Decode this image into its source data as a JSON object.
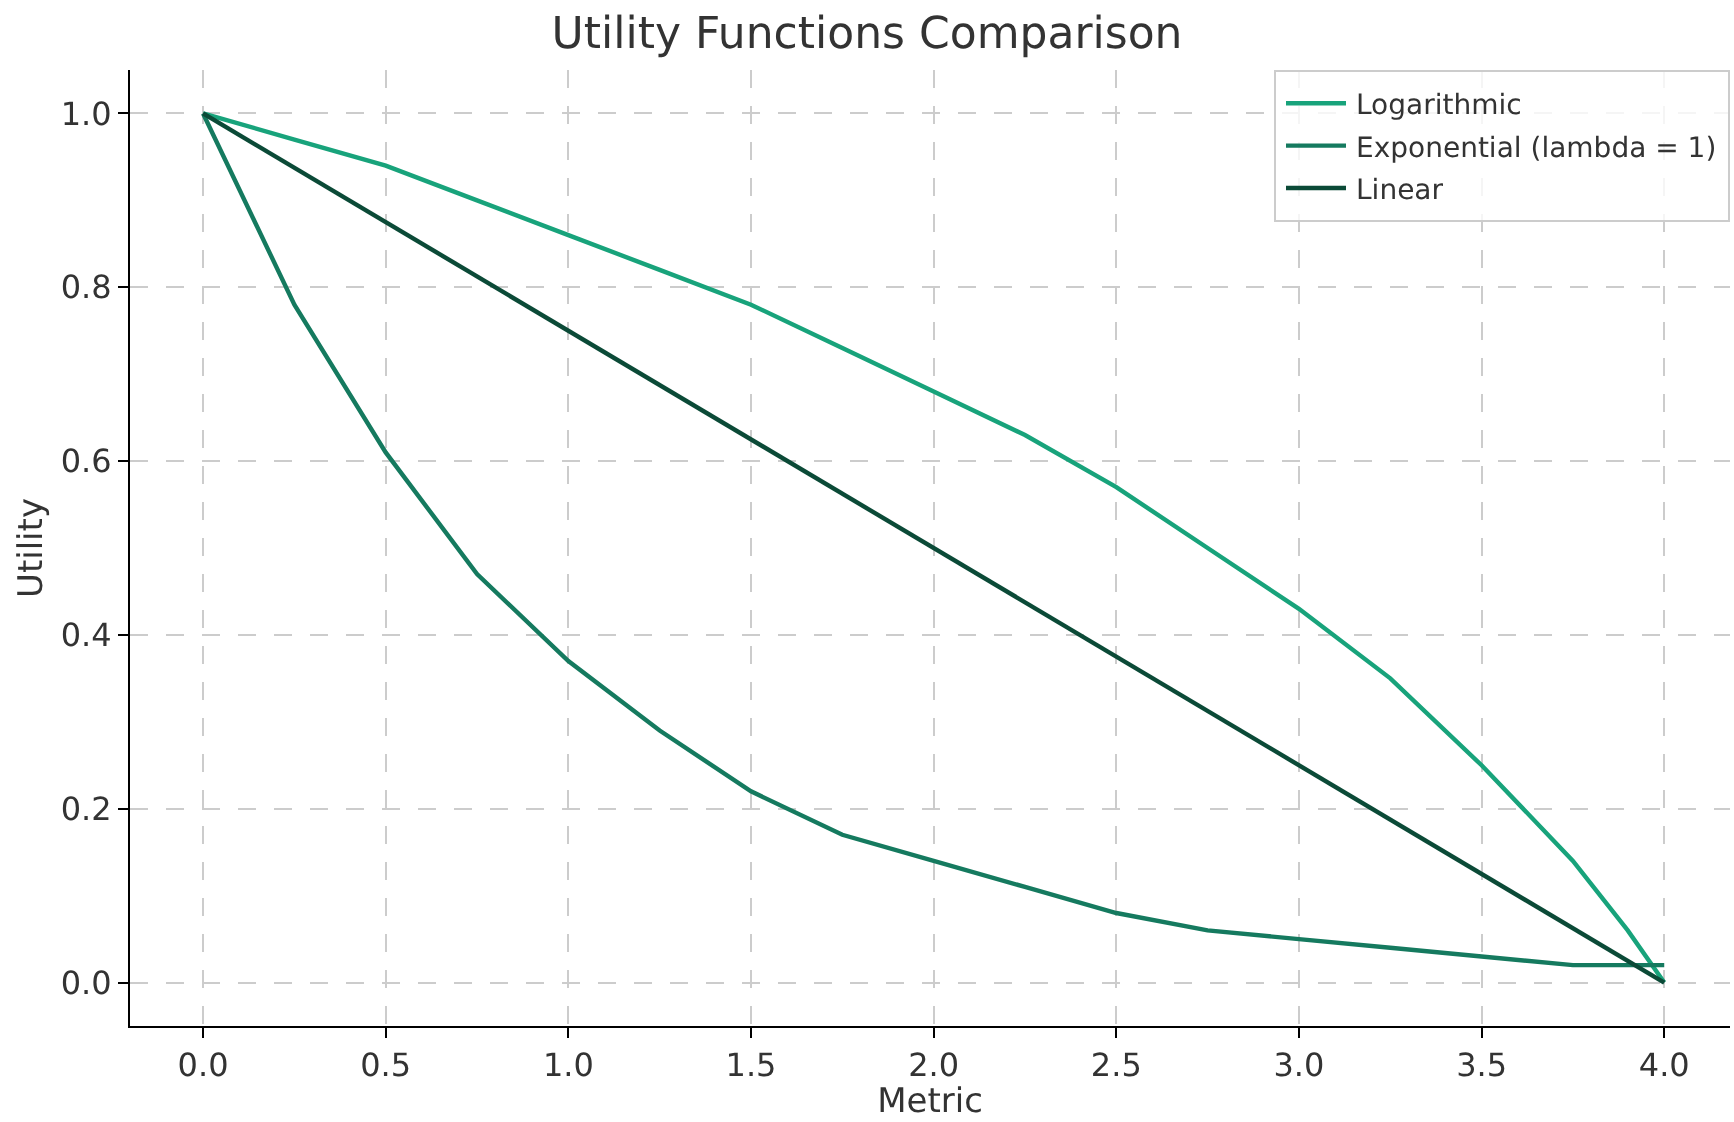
{
  "chart_data": {
    "type": "line",
    "title": "Utility Functions Comparison",
    "xlabel": "Metric",
    "ylabel": "Utility",
    "series": [
      {
        "name": "Logarithmic",
        "color": "#18a37b",
        "x": [
          0,
          0.25,
          0.5,
          0.75,
          1,
          1.25,
          1.5,
          1.75,
          2,
          2.25,
          2.5,
          2.75,
          3,
          3.25,
          3.5,
          3.75,
          3.9,
          4
        ],
        "values": [
          1,
          0.97,
          0.94,
          0.9,
          0.86,
          0.82,
          0.78,
          0.73,
          0.68,
          0.63,
          0.57,
          0.5,
          0.43,
          0.35,
          0.25,
          0.14,
          0.06,
          0
        ]
      },
      {
        "name": "Exponential (lambda = 1)",
        "color": "#157a5f",
        "x": [
          0,
          0.25,
          0.5,
          0.75,
          1,
          1.25,
          1.5,
          1.75,
          2,
          2.25,
          2.5,
          2.75,
          3,
          3.25,
          3.5,
          3.75,
          4
        ],
        "values": [
          1,
          0.78,
          0.61,
          0.47,
          0.37,
          0.29,
          0.22,
          0.17,
          0.14,
          0.11,
          0.08,
          0.06,
          0.05,
          0.04,
          0.03,
          0.02,
          0.02
        ]
      },
      {
        "name": "Linear",
        "color": "#0b4a37",
        "x": [
          0,
          4
        ],
        "values": [
          1,
          0
        ]
      }
    ],
    "xlim": [
      -0.2,
      4.18
    ],
    "xticks": [
      {
        "value": 0,
        "label": "0.0"
      },
      0.5,
      {
        "value": 1,
        "label": "1.0"
      },
      1.5,
      {
        "value": 2,
        "label": "2.0"
      },
      2.5,
      {
        "value": 3,
        "label": "3.0"
      },
      3.5,
      {
        "value": 4,
        "label": "4.0"
      }
    ],
    "ylim": [
      -0.05,
      1.05
    ],
    "yticks": [
      {
        "value": 0,
        "label": "0.0"
      },
      0.2,
      0.4,
      0.6,
      0.8,
      {
        "value": 1,
        "label": "1.0"
      }
    ],
    "grid": true,
    "legend": "top right",
    "line_style": "solid",
    "marker": "none"
  }
}
